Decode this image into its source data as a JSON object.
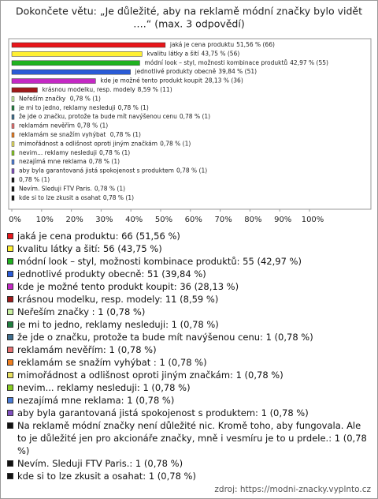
{
  "chart_data": {
    "type": "bar",
    "orientation": "horizontal",
    "title": [
      "Dokončete větu: „Je důležité, aby na reklamě módní značky bylo vidět",
      "….“ (max. 3 odpovědí)"
    ],
    "categories": [
      "jaká je cena produktu",
      "kvalitu látky a šití",
      "módní look – styl, možnosti kombinace produktů",
      "jednotlivé produkty obecně",
      "kde je možné tento produkt koupit",
      "krásnou modelku, resp. modely",
      "Neřeším značky ",
      "je mi to jedno, reklamy nesleduji",
      "že jde o značku, protože ta bude mít navýšenou cenu",
      "reklamám nevěřím",
      "reklamám se snažím vyhýbat ",
      "mimořádnost a odlišnost oproti jiným značkám",
      "nevim... reklamy nesleduji",
      "nezajímá mne reklama",
      "aby byla garantovaná jistá spokojenost s produktem",
      null,
      "Nevím. Sleduji FTV Paris.",
      "kde si to lze zkusit a osahat"
    ],
    "values": [
      51.56,
      43.75,
      42.97,
      39.84,
      28.13,
      8.59,
      0.78,
      0.78,
      0.78,
      0.78,
      0.78,
      0.78,
      0.78,
      0.78,
      0.78,
      0.78,
      0.78,
      0.78
    ],
    "value_labels": [
      "51,56 % (66)",
      "43,75 % (56)",
      "42,97 % (55)",
      "39,84 % (51)",
      "28,13 % (36)",
      "8,59 % (11)",
      "0,78 % (1)",
      "0,78 % (1)",
      "0,78 % (1)",
      "0,78 % (1)",
      "0,78 % (1)",
      "0,78 % (1)",
      "0,78 % (1)",
      "0,78 % (1)",
      "0,78 % (1)",
      "0,78 % (1)",
      "0,78 % (1)",
      "0,78 % (1)"
    ],
    "colors": [
      "#e8161b",
      "#fff033",
      "#1fb31f",
      "#2a5bd7",
      "#c428c4",
      "#a01a1a",
      "#c8f0a0",
      "#1f7f3f",
      "#3f6f8f",
      "#e87070",
      "#f08020",
      "#e8e060",
      "#88cc22",
      "#4a7cd8",
      "#8050c0",
      "#111111",
      "#111111",
      "#111111"
    ],
    "legend": [
      "jaká je cena produktu: 66 (51,56 %)",
      "kvalitu látky a šití: 56 (43,75 %)",
      "módní look – styl, možnosti kombinace produktů: 55 (42,97 %)",
      "jednotlivé produkty obecně: 51 (39,84 %)",
      "kde je možné tento produkt koupit: 36 (28,13 %)",
      "krásnou modelku, resp. modely: 11 (8,59 %)",
      "Neřeším značky : 1 (0,78 %)",
      "je mi to jedno, reklamy nesleduji: 1 (0,78 %)",
      "že jde o značku, protože ta bude mít navýšenou cenu: 1 (0,78 %)",
      "reklamám nevěřím: 1 (0,78 %)",
      "reklamám se snažím vyhýbat : 1 (0,78 %)",
      "mimořádnost a odlišnost oproti jiným značkám: 1 (0,78 %)",
      "nevim... reklamy nesleduji: 1 (0,78 %)",
      "nezajímá mne reklama: 1 (0,78 %)",
      "aby byla garantovaná jistá spokojenost s produktem: 1 (0,78 %)",
      "Na reklamě módní značky není důležité nic. Kromě toho, aby fungovala. Ale to je důležité jen pro akcionáře značky, mně i vesmíru je to u prdele.: 1 (0,78 %)",
      "Nevím. Sleduji FTV Paris.: 1 (0,78 %)",
      "kde si to lze zkusit a osahat: 1 (0,78 %)"
    ],
    "xlim": [
      0,
      100
    ],
    "xticks": [
      {
        "value": 0,
        "label": "0%"
      },
      {
        "value": 10,
        "label": "10%"
      },
      {
        "value": 20,
        "label": "20%"
      },
      {
        "value": 30,
        "label": "30%"
      },
      {
        "value": 40,
        "label": "40%"
      },
      {
        "value": 50,
        "label": "50%"
      },
      {
        "value": 60,
        "label": "60%"
      },
      {
        "value": 70,
        "label": "70%"
      },
      {
        "value": 80,
        "label": "80%"
      },
      {
        "value": 90,
        "label": "90%"
      },
      {
        "value": 100,
        "label": "100%"
      }
    ],
    "grid": false,
    "source": "zdroj: https://modni-znacky.vyplnto.cz"
  }
}
